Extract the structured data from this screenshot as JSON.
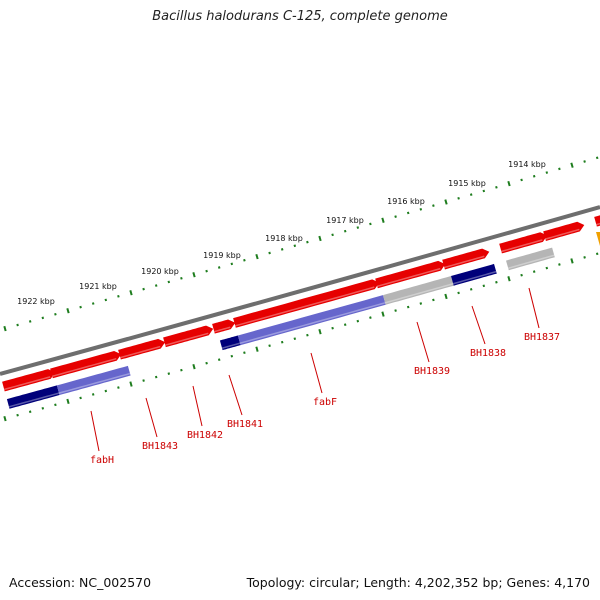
{
  "title": "Bacillus halodurans C-125, complete genome",
  "footer": {
    "accession": "Accession: NC_002570",
    "summary": "Topology: circular; Length: 4,202,352 bp; Genes: 4,170"
  },
  "colors": {
    "forward_gene": "#e60000",
    "reverse_blast_hit": "#00007a",
    "reverse_partial_hit": "#6666cc",
    "no_hit": "#b5b5b5",
    "backbone": "#6e6e6e",
    "tick": "#1e7d1e",
    "label": "#cc0000",
    "special_marker": "#f0a000"
  },
  "scale_labels": [
    "1914 kbp",
    "1915 kbp",
    "1916 kbp",
    "1917 kbp",
    "1918 kbp",
    "1919 kbp",
    "1920 kbp",
    "1921 kbp",
    "1922 kbp"
  ],
  "gene_labels": [
    "BH1837",
    "BH1838",
    "BH1839",
    "fabF",
    "BH1841",
    "BH1842",
    "BH1843",
    "fabH"
  ]
}
